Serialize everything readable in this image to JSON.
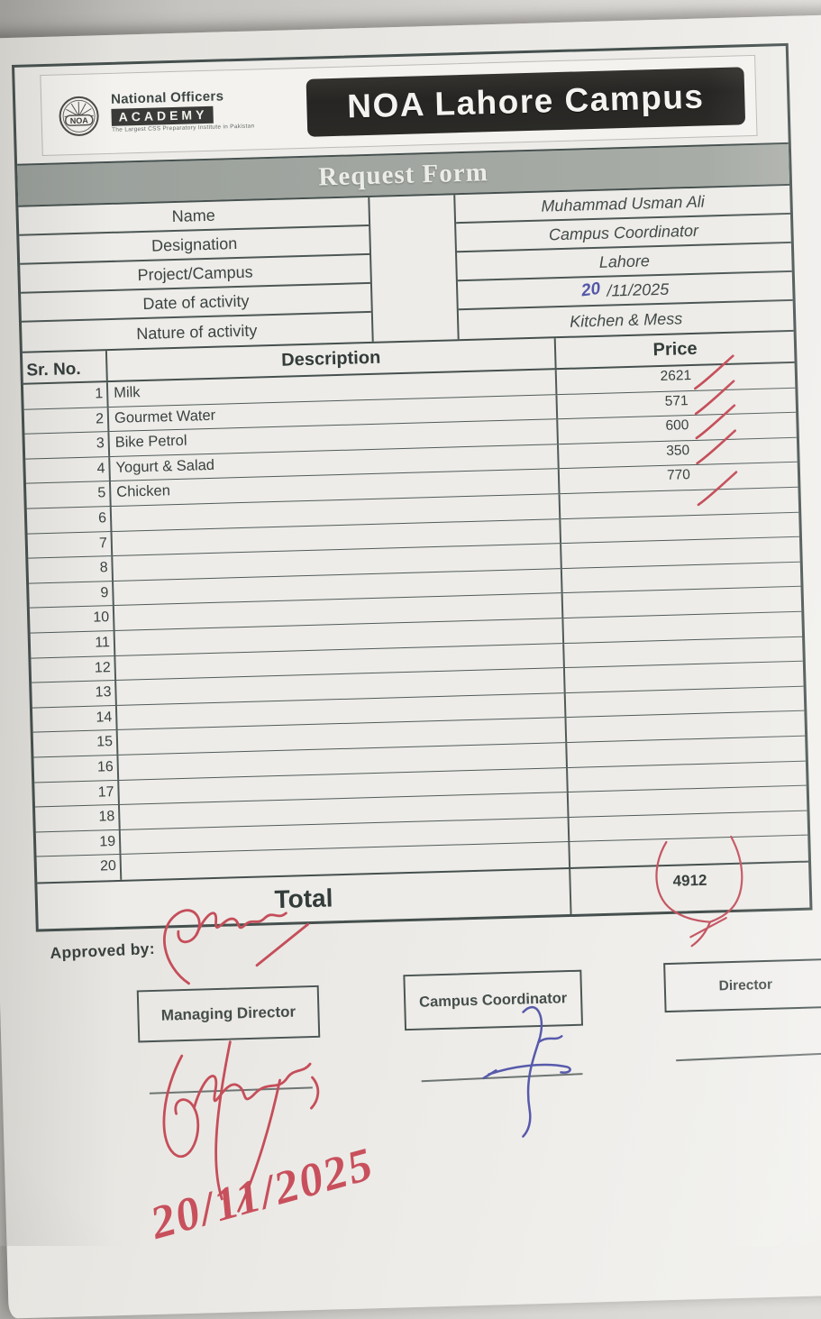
{
  "colors": {
    "red_pen": "#c54e5a",
    "blue_pen": "#575aab",
    "table_border": "#45504e",
    "banner_bg": "#2b2a28",
    "title_band_bg": "#a0a49f",
    "paper": "#edece8"
  },
  "header": {
    "logo": {
      "emblem_text": "NOA",
      "org_name": "National Officers",
      "academy_label": "ACADEMY",
      "tagline": "The Largest CSS Preparatory Institute in Pakistan"
    },
    "campus_banner": "NOA Lahore Campus",
    "form_title": "Request Form"
  },
  "info_fields": [
    {
      "label": "Name",
      "value": "Muhammad Usman Ali",
      "handwritten": ""
    },
    {
      "label": "Designation",
      "value": "Campus Coordinator",
      "handwritten": ""
    },
    {
      "label": "Project/Campus",
      "value": "Lahore",
      "handwritten": ""
    },
    {
      "label": "Date of activity",
      "value": "/11/2025",
      "handwritten": "20"
    },
    {
      "label": "Nature of activity",
      "value": "Kitchen & Mess",
      "handwritten": ""
    }
  ],
  "table": {
    "headers": {
      "sr": "Sr. No.",
      "description": "Description",
      "price": "Price"
    },
    "rows": [
      {
        "sr": "1",
        "description": "Milk",
        "price": "2621",
        "ticked": true
      },
      {
        "sr": "2",
        "description": "Gourmet Water",
        "price": "571",
        "ticked": true
      },
      {
        "sr": "3",
        "description": "Bike Petrol",
        "price": "600",
        "ticked": true
      },
      {
        "sr": "4",
        "description": "Yogurt & Salad",
        "price": "350",
        "ticked": true
      },
      {
        "sr": "5",
        "description": "Chicken",
        "price": "770",
        "ticked": true
      },
      {
        "sr": "6",
        "description": "",
        "price": "",
        "ticked": false
      },
      {
        "sr": "7",
        "description": "",
        "price": "",
        "ticked": false
      },
      {
        "sr": "8",
        "description": "",
        "price": "",
        "ticked": false
      },
      {
        "sr": "9",
        "description": "",
        "price": "",
        "ticked": false
      },
      {
        "sr": "10",
        "description": "",
        "price": "",
        "ticked": false
      },
      {
        "sr": "11",
        "description": "",
        "price": "",
        "ticked": false
      },
      {
        "sr": "12",
        "description": "",
        "price": "",
        "ticked": false
      },
      {
        "sr": "13",
        "description": "",
        "price": "",
        "ticked": false
      },
      {
        "sr": "14",
        "description": "",
        "price": "",
        "ticked": false
      },
      {
        "sr": "15",
        "description": "",
        "price": "",
        "ticked": false
      },
      {
        "sr": "16",
        "description": "",
        "price": "",
        "ticked": false
      },
      {
        "sr": "17",
        "description": "",
        "price": "",
        "ticked": false
      },
      {
        "sr": "18",
        "description": "",
        "price": "",
        "ticked": false
      },
      {
        "sr": "19",
        "description": "",
        "price": "",
        "ticked": false
      },
      {
        "sr": "20",
        "description": "",
        "price": "",
        "ticked": false
      }
    ],
    "total_label": "Total",
    "total_value": "4912"
  },
  "approval": {
    "approved_by_label": "Approved by:",
    "signature_boxes": [
      {
        "label": "Managing Director"
      },
      {
        "label": "Campus Coordinator"
      },
      {
        "label": "Director"
      }
    ],
    "handwritten_date": "20/11/2025"
  }
}
